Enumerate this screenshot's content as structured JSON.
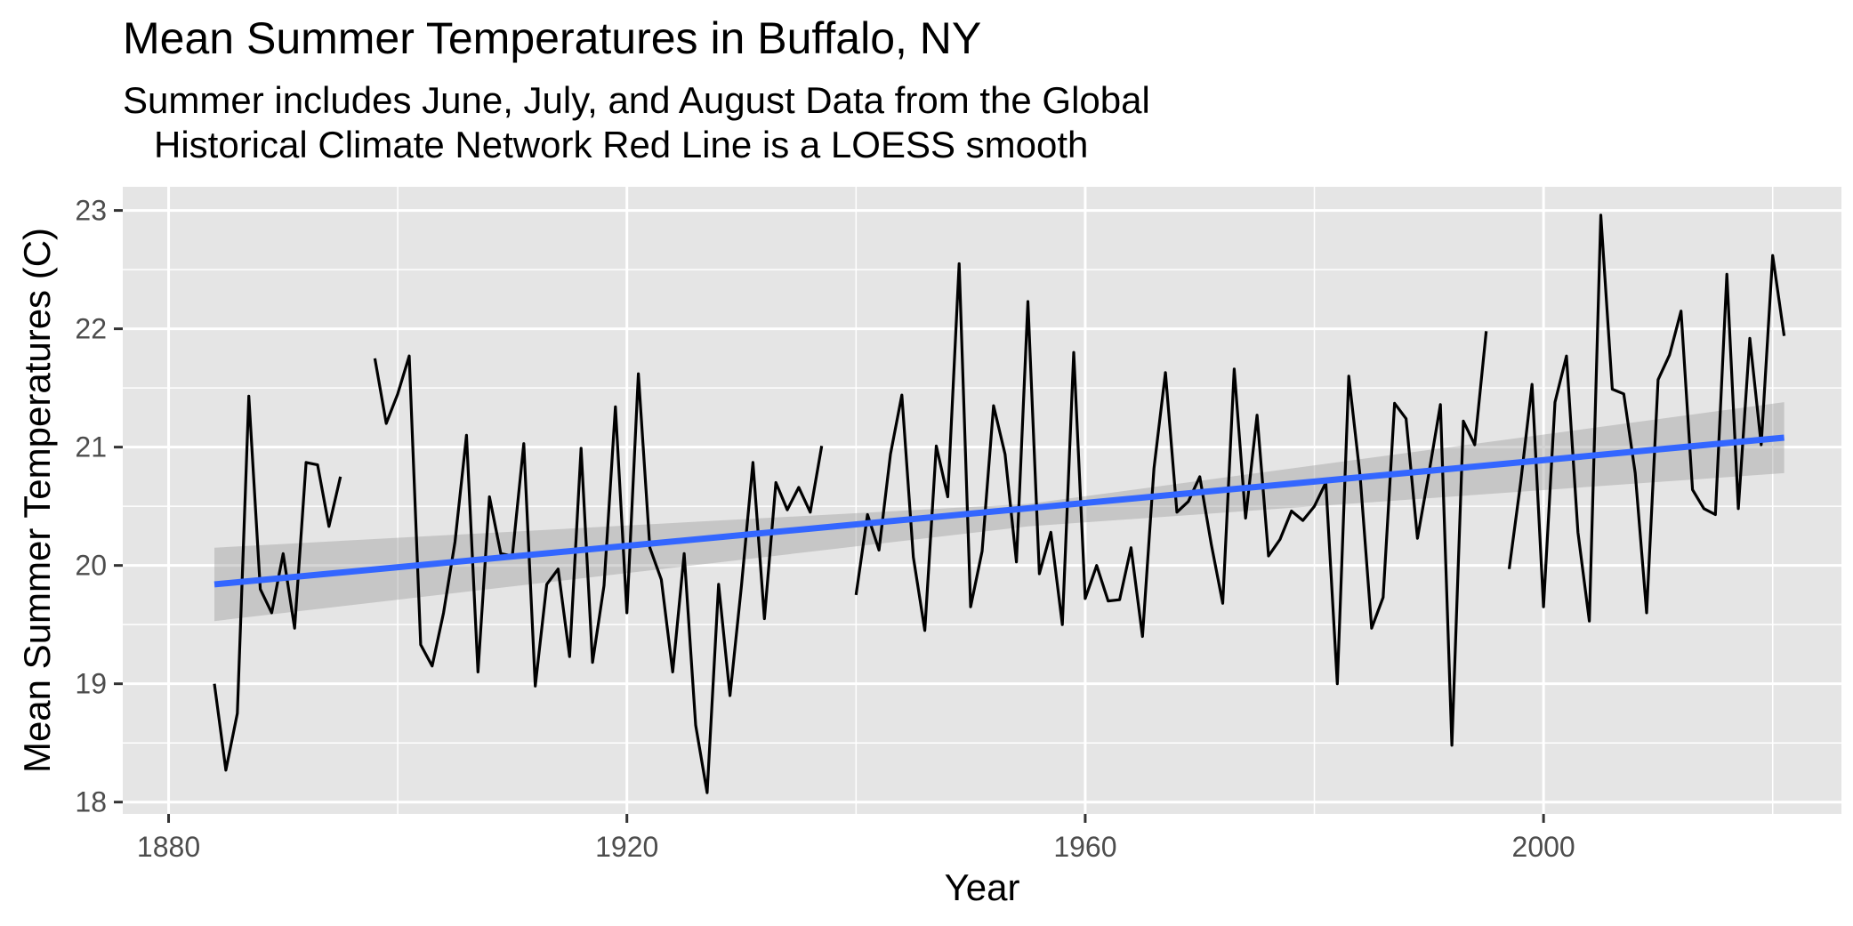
{
  "chart_data": {
    "type": "line",
    "title": "Mean Summer Temperatures in Buffalo, NY",
    "subtitle": "Summer includes June, July, and August Data from the Global\n   Historical Climate Network Red Line is a LOESS smooth",
    "xlabel": "Year",
    "ylabel": "Mean Summer Temperatures (C)",
    "xlim": [
      1876,
      2026
    ],
    "ylim": [
      17.9,
      23.2
    ],
    "x_ticks": [
      1880,
      1920,
      1960,
      2000
    ],
    "y_ticks": [
      18,
      19,
      20,
      21,
      22,
      23
    ],
    "grid": true,
    "legend": "none",
    "colors": {
      "panel": "#e5e5e5",
      "grid": "#ffffff",
      "line": "#000000",
      "smooth": "#3366ff",
      "ribbon": "#999999"
    },
    "series": [
      {
        "values": [
          [
            1884,
            19.0
          ],
          [
            1885,
            18.27
          ],
          [
            1886,
            18.75
          ],
          [
            1887,
            21.43
          ],
          [
            1888,
            19.8
          ],
          [
            1889,
            19.6
          ],
          [
            1890,
            20.1
          ],
          [
            1891,
            19.47
          ],
          [
            1892,
            20.87
          ],
          [
            1893,
            20.85
          ],
          [
            1894,
            20.33
          ],
          [
            1895,
            20.75
          ],
          [
            1896,
            null
          ],
          [
            1897,
            null
          ],
          [
            1898,
            21.75
          ],
          [
            1899,
            21.2
          ],
          [
            1900,
            21.45
          ],
          [
            1901,
            21.77
          ],
          [
            1902,
            19.33
          ],
          [
            1903,
            19.15
          ],
          [
            1904,
            19.6
          ],
          [
            1905,
            20.2
          ],
          [
            1906,
            21.1
          ],
          [
            1907,
            19.1
          ],
          [
            1908,
            20.58
          ],
          [
            1909,
            20.1
          ],
          [
            1910,
            20.08
          ],
          [
            1911,
            21.03
          ],
          [
            1912,
            18.98
          ],
          [
            1913,
            19.84
          ],
          [
            1914,
            19.97
          ],
          [
            1915,
            19.23
          ],
          [
            1916,
            20.99
          ],
          [
            1917,
            19.18
          ],
          [
            1918,
            19.83
          ],
          [
            1919,
            21.34
          ],
          [
            1920,
            19.6
          ],
          [
            1921,
            21.62
          ],
          [
            1922,
            20.15
          ],
          [
            1923,
            19.88
          ],
          [
            1924,
            19.1
          ],
          [
            1925,
            20.1
          ],
          [
            1926,
            18.65
          ],
          [
            1927,
            18.08
          ],
          [
            1928,
            19.84
          ],
          [
            1929,
            18.9
          ],
          [
            1930,
            19.83
          ],
          [
            1931,
            20.87
          ],
          [
            1932,
            19.55
          ],
          [
            1933,
            20.7
          ],
          [
            1934,
            20.47
          ],
          [
            1935,
            20.66
          ],
          [
            1936,
            20.45
          ],
          [
            1937,
            21.01
          ],
          [
            1938,
            null
          ],
          [
            1939,
            null
          ],
          [
            1940,
            19.75
          ],
          [
            1941,
            20.43
          ],
          [
            1942,
            20.13
          ],
          [
            1943,
            20.94
          ],
          [
            1944,
            21.44
          ],
          [
            1945,
            20.07
          ],
          [
            1946,
            19.45
          ],
          [
            1947,
            21.01
          ],
          [
            1948,
            20.58
          ],
          [
            1949,
            22.55
          ],
          [
            1950,
            19.65
          ],
          [
            1951,
            20.12
          ],
          [
            1952,
            21.35
          ],
          [
            1953,
            20.94
          ],
          [
            1954,
            20.03
          ],
          [
            1955,
            22.23
          ],
          [
            1956,
            19.93
          ],
          [
            1957,
            20.28
          ],
          [
            1958,
            19.5
          ],
          [
            1959,
            21.8
          ],
          [
            1960,
            19.72
          ],
          [
            1961,
            20.0
          ],
          [
            1962,
            19.7
          ],
          [
            1963,
            19.71
          ],
          [
            1964,
            20.15
          ],
          [
            1965,
            19.4
          ],
          [
            1966,
            20.82
          ],
          [
            1967,
            21.63
          ],
          [
            1968,
            20.45
          ],
          [
            1969,
            20.54
          ],
          [
            1970,
            20.75
          ],
          [
            1971,
            20.18
          ],
          [
            1972,
            19.68
          ],
          [
            1973,
            21.66
          ],
          [
            1974,
            20.4
          ],
          [
            1975,
            21.27
          ],
          [
            1976,
            20.08
          ],
          [
            1977,
            20.22
          ],
          [
            1978,
            20.46
          ],
          [
            1979,
            20.38
          ],
          [
            1980,
            20.5
          ],
          [
            1981,
            20.7
          ],
          [
            1982,
            19.0
          ],
          [
            1983,
            21.6
          ],
          [
            1984,
            20.75
          ],
          [
            1985,
            19.47
          ],
          [
            1986,
            19.73
          ],
          [
            1987,
            21.37
          ],
          [
            1988,
            21.24
          ],
          [
            1989,
            20.23
          ],
          [
            1990,
            20.78
          ],
          [
            1991,
            21.36
          ],
          [
            1992,
            18.48
          ],
          [
            1993,
            21.22
          ],
          [
            1994,
            21.02
          ],
          [
            1995,
            21.98
          ],
          [
            1996,
            null
          ],
          [
            1997,
            19.97
          ],
          [
            1998,
            20.7
          ],
          [
            1999,
            21.53
          ],
          [
            2000,
            19.65
          ],
          [
            2001,
            21.38
          ],
          [
            2002,
            21.77
          ],
          [
            2003,
            20.28
          ],
          [
            2004,
            19.53
          ],
          [
            2005,
            22.96
          ],
          [
            2006,
            21.49
          ],
          [
            2007,
            21.45
          ],
          [
            2008,
            20.78
          ],
          [
            2009,
            19.6
          ],
          [
            2010,
            21.57
          ],
          [
            2011,
            21.78
          ],
          [
            2012,
            22.15
          ],
          [
            2013,
            20.64
          ],
          [
            2014,
            20.48
          ],
          [
            2015,
            20.43
          ],
          [
            2016,
            22.46
          ],
          [
            2017,
            20.48
          ],
          [
            2018,
            21.92
          ],
          [
            2019,
            21.02
          ],
          [
            2020,
            22.62
          ],
          [
            2021,
            21.94
          ]
        ]
      }
    ],
    "smooth": {
      "method": "linear",
      "x": [
        1884,
        2021
      ],
      "y": [
        19.84,
        21.08
      ],
      "ribbon_lower": [
        19.53,
        20.78
      ],
      "ribbon_upper": [
        20.15,
        21.38
      ],
      "ribbon_mid": [
        1955,
        20.33,
        20.52
      ]
    }
  }
}
